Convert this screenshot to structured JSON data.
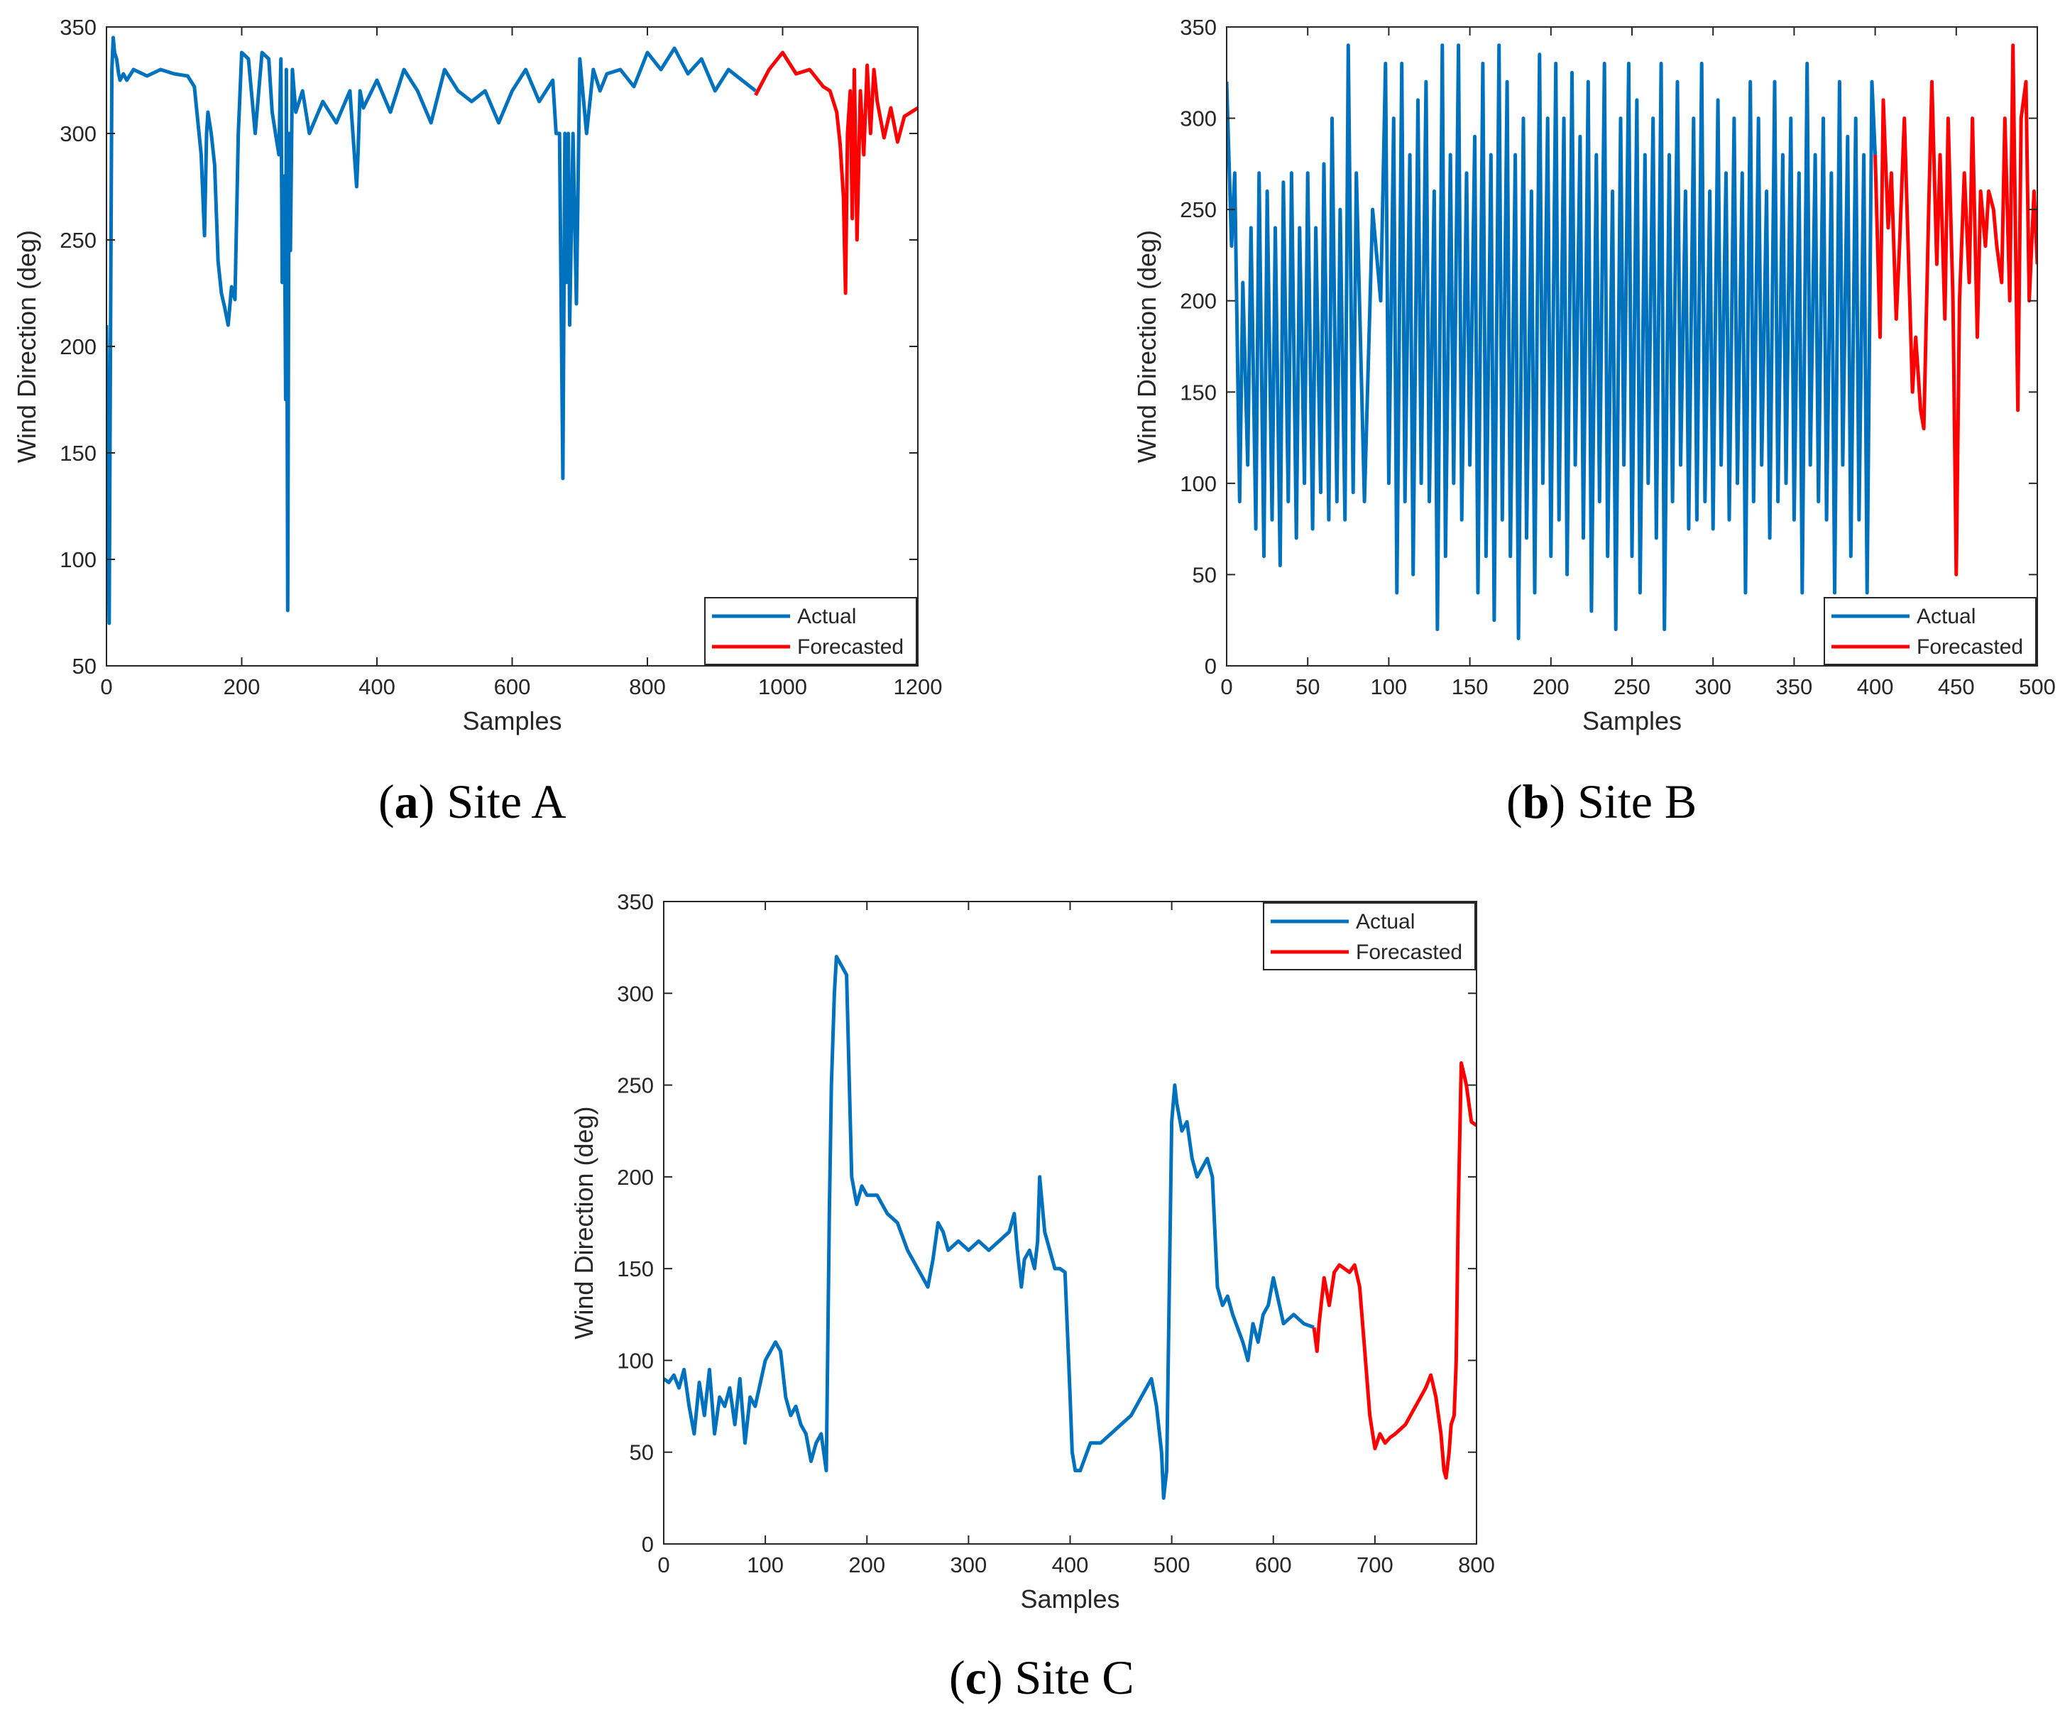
{
  "colors": {
    "actual": "#0072BD",
    "forecast": "#FF0000",
    "axis": "#262626"
  },
  "chart_data": [
    {
      "type": "line",
      "caption_letter": "a",
      "caption_text": "Site A",
      "xlabel": "Samples",
      "ylabel": "Wind Direction (deg)",
      "xlim": [
        0,
        1200
      ],
      "ylim": [
        50,
        350
      ],
      "xticks": [
        0,
        200,
        400,
        600,
        800,
        1000,
        1200
      ],
      "yticks": [
        50,
        100,
        150,
        200,
        250,
        300,
        350
      ],
      "legend": [
        "Actual",
        "Forecasted"
      ],
      "legend_position": "bottom-right",
      "series": [
        {
          "name": "Actual",
          "x": [
            0,
            2,
            4,
            6,
            8,
            10,
            12,
            15,
            18,
            20,
            25,
            30,
            40,
            60,
            80,
            100,
            120,
            130,
            140,
            145,
            148,
            150,
            155,
            160,
            165,
            170,
            175,
            180,
            185,
            190,
            195,
            200,
            210,
            220,
            230,
            240,
            245,
            250,
            255,
            258,
            260,
            263,
            265,
            266,
            268,
            270,
            272,
            275,
            280,
            290,
            300,
            320,
            340,
            360,
            370,
            372,
            375,
            380,
            400,
            420,
            440,
            460,
            480,
            500,
            520,
            540,
            560,
            580,
            600,
            620,
            640,
            660,
            665,
            670,
            675,
            678,
            680,
            683,
            685,
            690,
            695,
            700,
            710,
            720,
            730,
            740,
            760,
            780,
            800,
            820,
            840,
            860,
            880,
            900,
            920,
            940,
            960
          ],
          "y": [
            210,
            130,
            70,
            205,
            330,
            345,
            338,
            335,
            328,
            325,
            328,
            325,
            330,
            327,
            330,
            328,
            327,
            322,
            290,
            252,
            300,
            310,
            300,
            285,
            240,
            225,
            218,
            210,
            228,
            222,
            300,
            338,
            335,
            300,
            338,
            335,
            310,
            300,
            290,
            335,
            230,
            280,
            175,
            330,
            76,
            300,
            245,
            330,
            310,
            320,
            300,
            315,
            305,
            320,
            275,
            290,
            320,
            312,
            325,
            310,
            330,
            320,
            305,
            330,
            320,
            315,
            320,
            305,
            320,
            330,
            315,
            325,
            300,
            300,
            138,
            300,
            230,
            300,
            210,
            300,
            220,
            335,
            300,
            330,
            320,
            328,
            330,
            322,
            338,
            330,
            340,
            328,
            335,
            320,
            330,
            325,
            320
          ]
        },
        {
          "name": "Forecasted",
          "x": [
            960,
            980,
            1000,
            1020,
            1040,
            1060,
            1070,
            1080,
            1085,
            1090,
            1093,
            1096,
            1100,
            1103,
            1106,
            1110,
            1115,
            1120,
            1125,
            1130,
            1135,
            1140,
            1150,
            1160,
            1170,
            1180,
            1190,
            1200
          ],
          "y": [
            318,
            330,
            338,
            328,
            330,
            322,
            320,
            310,
            295,
            270,
            225,
            300,
            320,
            260,
            330,
            250,
            320,
            290,
            332,
            300,
            330,
            315,
            298,
            312,
            296,
            308,
            310,
            312
          ]
        }
      ]
    },
    {
      "type": "line",
      "caption_letter": "b",
      "caption_text": "Site B",
      "xlabel": "Samples",
      "ylabel": "Wind Direction (deg)",
      "xlim": [
        0,
        500
      ],
      "ylim": [
        0,
        350
      ],
      "xticks": [
        0,
        50,
        100,
        150,
        200,
        250,
        300,
        350,
        400,
        450,
        500
      ],
      "yticks": [
        0,
        50,
        100,
        150,
        200,
        250,
        300,
        350
      ],
      "legend": [
        "Actual",
        "Forecasted"
      ],
      "legend_position": "bottom-right",
      "series": [
        {
          "name": "Actual",
          "x": [
            0,
            3,
            5,
            8,
            10,
            13,
            15,
            18,
            20,
            23,
            25,
            28,
            30,
            33,
            35,
            38,
            40,
            43,
            45,
            48,
            50,
            53,
            55,
            58,
            60,
            63,
            65,
            68,
            70,
            73,
            75,
            78,
            80,
            85,
            90,
            95,
            98,
            100,
            103,
            105,
            108,
            110,
            113,
            115,
            118,
            120,
            123,
            125,
            128,
            130,
            133,
            135,
            138,
            140,
            143,
            145,
            148,
            150,
            153,
            155,
            158,
            160,
            163,
            165,
            168,
            170,
            173,
            175,
            178,
            180,
            183,
            185,
            188,
            190,
            193,
            195,
            198,
            200,
            203,
            205,
            208,
            210,
            213,
            215,
            218,
            220,
            223,
            225,
            228,
            230,
            233,
            235,
            238,
            240,
            243,
            245,
            248,
            250,
            253,
            255,
            258,
            260,
            263,
            265,
            268,
            270,
            273,
            275,
            278,
            280,
            283,
            285,
            288,
            290,
            293,
            295,
            298,
            300,
            303,
            305,
            308,
            310,
            313,
            315,
            318,
            320,
            323,
            325,
            328,
            330,
            333,
            335,
            338,
            340,
            343,
            345,
            348,
            350,
            353,
            355,
            358,
            360,
            363,
            365,
            368,
            370,
            373,
            375,
            378,
            380,
            383,
            385,
            388,
            390,
            393,
            395,
            398,
            400
          ],
          "y": [
            320,
            230,
            270,
            90,
            210,
            110,
            240,
            75,
            270,
            60,
            260,
            80,
            240,
            55,
            265,
            90,
            270,
            70,
            240,
            100,
            270,
            75,
            240,
            95,
            275,
            80,
            300,
            90,
            250,
            80,
            340,
            95,
            270,
            90,
            250,
            200,
            330,
            100,
            300,
            40,
            330,
            90,
            280,
            50,
            310,
            100,
            320,
            90,
            260,
            20,
            340,
            60,
            280,
            100,
            340,
            80,
            270,
            110,
            290,
            40,
            330,
            60,
            280,
            25,
            340,
            80,
            320,
            60,
            280,
            15,
            300,
            70,
            260,
            40,
            335,
            100,
            300,
            60,
            330,
            80,
            300,
            50,
            325,
            110,
            290,
            70,
            320,
            30,
            280,
            90,
            330,
            60,
            260,
            20,
            300,
            110,
            330,
            60,
            310,
            40,
            280,
            100,
            300,
            70,
            330,
            20,
            280,
            90,
            320,
            110,
            260,
            75,
            300,
            80,
            330,
            90,
            260,
            75,
            310,
            110,
            270,
            80,
            300,
            100,
            270,
            40,
            320,
            90,
            300,
            110,
            260,
            70,
            320,
            90,
            280,
            100,
            300,
            80,
            270,
            40,
            330,
            110,
            280,
            90,
            300,
            80,
            270,
            40,
            320,
            110,
            290,
            60,
            300,
            80,
            280,
            40,
            320,
            280
          ]
        },
        {
          "name": "Forecasted",
          "x": [
            400,
            403,
            405,
            408,
            410,
            413,
            415,
            418,
            420,
            423,
            425,
            428,
            430,
            433,
            435,
            438,
            440,
            443,
            445,
            448,
            450,
            452,
            455,
            458,
            460,
            463,
            465,
            468,
            470,
            473,
            475,
            478,
            480,
            483,
            485,
            488,
            490,
            493,
            495,
            498,
            500
          ],
          "y": [
            280,
            180,
            310,
            240,
            270,
            190,
            230,
            300,
            240,
            150,
            180,
            140,
            130,
            250,
            320,
            220,
            280,
            190,
            300,
            200,
            50,
            200,
            270,
            210,
            300,
            180,
            260,
            230,
            260,
            250,
            230,
            210,
            300,
            200,
            340,
            140,
            300,
            320,
            200,
            260,
            220
          ]
        }
      ]
    },
    {
      "type": "line",
      "caption_letter": "c",
      "caption_text": "Site C",
      "xlabel": "Samples",
      "ylabel": "Wind Direction (deg)",
      "xlim": [
        0,
        800
      ],
      "ylim": [
        0,
        350
      ],
      "xticks": [
        0,
        100,
        200,
        300,
        400,
        500,
        600,
        700,
        800
      ],
      "yticks": [
        0,
        50,
        100,
        150,
        200,
        250,
        300,
        350
      ],
      "legend": [
        "Actual",
        "Forecasted"
      ],
      "legend_position": "top-right",
      "series": [
        {
          "name": "Actual",
          "x": [
            0,
            5,
            10,
            15,
            20,
            25,
            30,
            35,
            40,
            45,
            50,
            55,
            60,
            65,
            70,
            75,
            80,
            85,
            90,
            100,
            110,
            115,
            120,
            125,
            130,
            135,
            140,
            145,
            150,
            155,
            160,
            163,
            165,
            168,
            170,
            175,
            180,
            185,
            190,
            195,
            200,
            210,
            220,
            230,
            240,
            250,
            255,
            260,
            265,
            270,
            275,
            280,
            290,
            300,
            310,
            320,
            330,
            340,
            345,
            348,
            350,
            352,
            355,
            360,
            365,
            368,
            370,
            375,
            380,
            385,
            390,
            395,
            400,
            402,
            405,
            410,
            420,
            430,
            440,
            450,
            460,
            470,
            480,
            485,
            490,
            492,
            495,
            500,
            503,
            505,
            510,
            515,
            520,
            525,
            530,
            535,
            540,
            545,
            550,
            555,
            560,
            570,
            575,
            580,
            585,
            590,
            595,
            600,
            610,
            620,
            630,
            640
          ],
          "y": [
            90,
            88,
            92,
            85,
            95,
            75,
            60,
            88,
            70,
            95,
            60,
            80,
            75,
            85,
            65,
            90,
            55,
            80,
            75,
            100,
            110,
            105,
            80,
            70,
            75,
            65,
            60,
            45,
            55,
            60,
            40,
            180,
            250,
            300,
            320,
            315,
            310,
            200,
            185,
            195,
            190,
            190,
            180,
            175,
            160,
            150,
            145,
            140,
            155,
            175,
            170,
            160,
            165,
            160,
            165,
            160,
            165,
            170,
            180,
            160,
            150,
            140,
            155,
            160,
            150,
            165,
            200,
            170,
            160,
            150,
            150,
            148,
            80,
            50,
            40,
            40,
            55,
            55,
            60,
            65,
            70,
            80,
            90,
            75,
            50,
            25,
            40,
            230,
            250,
            240,
            225,
            230,
            210,
            200,
            205,
            210,
            200,
            140,
            130,
            135,
            125,
            110,
            100,
            120,
            110,
            125,
            130,
            145,
            120,
            125,
            120,
            118
          ]
        },
        {
          "name": "Forecasted",
          "x": [
            640,
            643,
            645,
            650,
            655,
            660,
            665,
            670,
            675,
            680,
            685,
            690,
            695,
            700,
            705,
            710,
            715,
            720,
            730,
            740,
            750,
            755,
            760,
            765,
            768,
            770,
            773,
            775,
            778,
            780,
            782,
            785,
            788,
            790,
            795,
            800
          ],
          "y": [
            118,
            105,
            120,
            145,
            130,
            148,
            152,
            150,
            148,
            152,
            140,
            105,
            70,
            52,
            60,
            55,
            58,
            60,
            65,
            75,
            85,
            92,
            80,
            60,
            40,
            36,
            50,
            65,
            70,
            100,
            180,
            262,
            255,
            250,
            230,
            228
          ]
        }
      ]
    }
  ]
}
